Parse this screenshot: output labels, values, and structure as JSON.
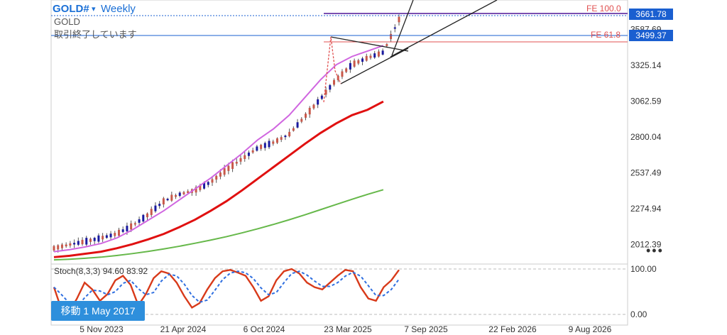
{
  "header": {
    "symbol": "GOLD#",
    "caret": "▾",
    "timeframe": "Weekly",
    "name": "GOLD",
    "status": "取引終了しています"
  },
  "fib": {
    "fe100_label": "FE 100.0",
    "fe618_label": "FE 61.8"
  },
  "price_tags": {
    "current": "3661.78",
    "fe618": "3499.37"
  },
  "stoch": {
    "label": "Stoch(8,3,3) 94.60 83.92",
    "k_value": 94.6,
    "d_value": 83.92
  },
  "goto_button": "移動 1 May 2017",
  "more_icon": "•••",
  "colors": {
    "up": "#26a69a",
    "down": "#1a1aa0",
    "bull_body": "#c8584a",
    "ma_short": "#d066e0",
    "ma_mid": "#e01010",
    "ma_long": "#66b84a",
    "stoch_k": "#d83a1a",
    "stoch_d": "#2f6fe0",
    "fe": "#e05050",
    "blue_line": "#1a5fd0"
  },
  "chart_data": {
    "type": "line",
    "title": "GOLD# Weekly",
    "y_ticks": [
      3587.69,
      3325.14,
      3062.59,
      2800.04,
      2537.49,
      2274.94,
      2012.39
    ],
    "y_tick_labels": [
      "3587.69",
      "3325.14",
      "3062.59",
      "2800.04",
      "2537.49",
      "2274.94",
      "2012.39"
    ],
    "ylim": [
      1880,
      3700
    ],
    "x_tick_labels": [
      "5 Nov 2023",
      "21 Apr 2024",
      "6 Oct 2024",
      "23 Mar 2025",
      "7 Sep 2025",
      "22 Feb 2026",
      "9 Aug 2026"
    ],
    "stoch_ticks": [
      "100.00",
      "0.00"
    ],
    "series": [
      {
        "values": [
          1985,
          2012,
          2035,
          2060,
          2090,
          2150,
          2230,
          2330,
          2380,
          2410,
          2470,
          2560,
          2640,
          2720,
          2760,
          2820,
          2950,
          3080,
          3220,
          3330,
          3380,
          3420,
          3661
        ]
      },
      {
        "values": [
          1960,
          1975,
          1995,
          2020,
          2060,
          2120,
          2190,
          2260,
          2340,
          2420,
          2500,
          2590,
          2680,
          2780,
          2860,
          2960,
          3090,
          3220,
          3330,
          3390,
          3430,
          3470
        ]
      },
      {
        "values": [
          1920,
          1930,
          1945,
          1960,
          1985,
          2015,
          2050,
          2090,
          2140,
          2195,
          2260,
          2330,
          2410,
          2495,
          2580,
          2665,
          2750,
          2830,
          2900,
          2960,
          3000,
          3060
        ]
      },
      {
        "values": [
          1900,
          1905,
          1912,
          1920,
          1932,
          1946,
          1962,
          1980,
          2000,
          2022,
          2045,
          2070,
          2098,
          2128,
          2160,
          2194,
          2230,
          2268,
          2306,
          2344,
          2380,
          2414
        ]
      }
    ]
  }
}
